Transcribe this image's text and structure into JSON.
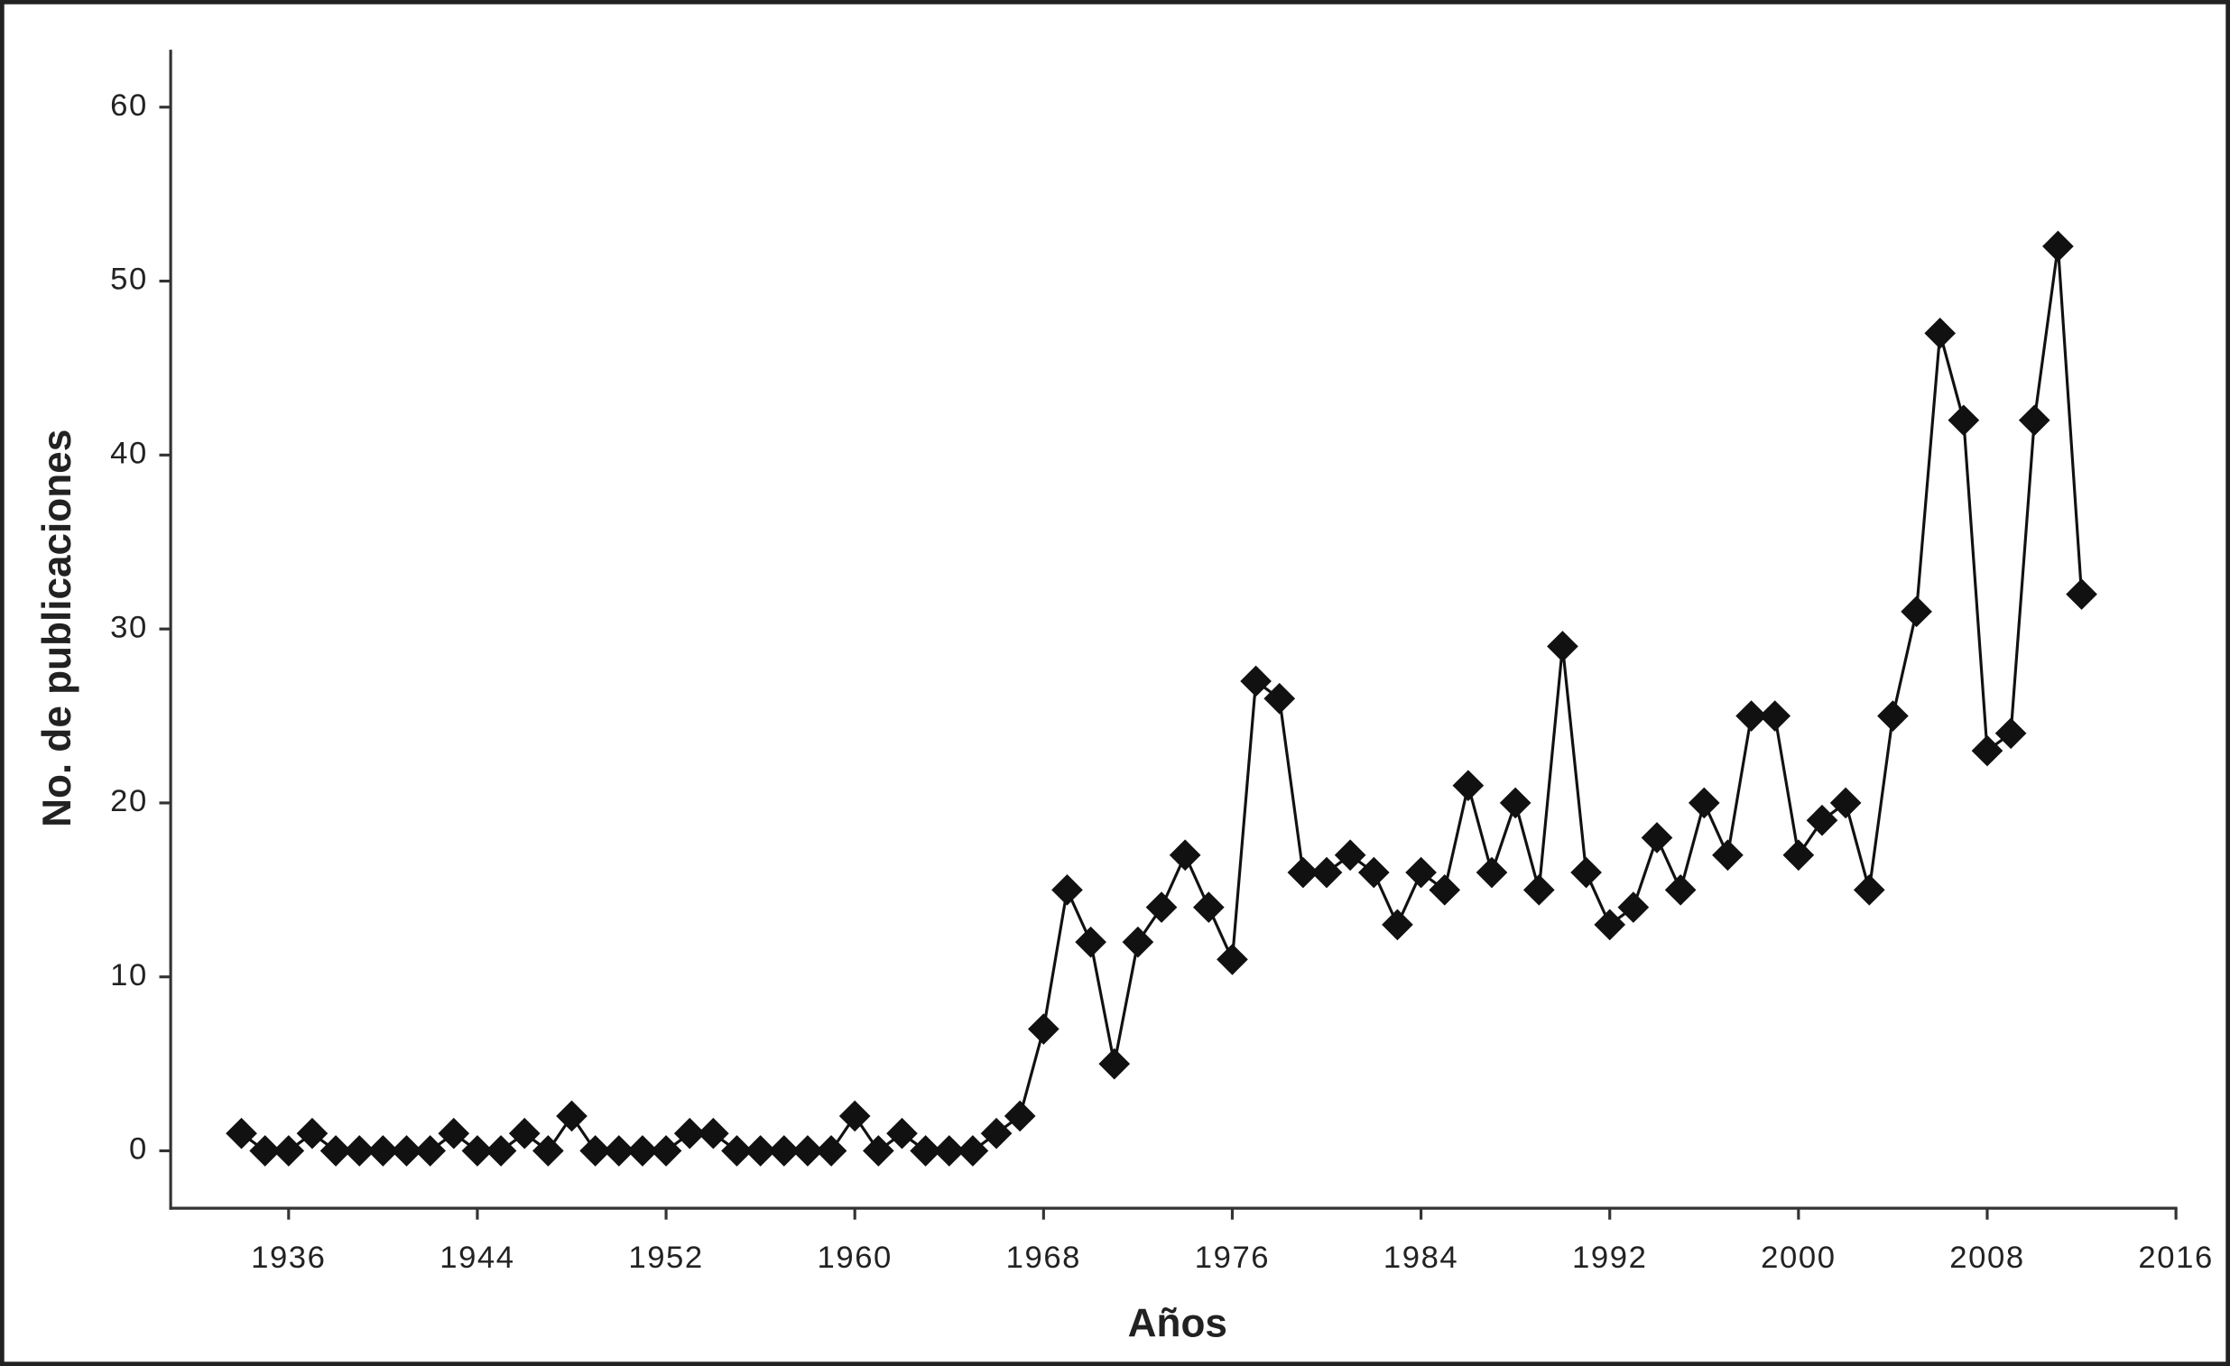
{
  "chart_data": {
    "type": "line",
    "x_label": "Años",
    "y_label": "No. de publicaciones",
    "x": [
      1934,
      1935,
      1936,
      1937,
      1938,
      1939,
      1940,
      1941,
      1942,
      1943,
      1944,
      1945,
      1946,
      1947,
      1948,
      1949,
      1950,
      1951,
      1952,
      1953,
      1954,
      1955,
      1956,
      1957,
      1958,
      1959,
      1960,
      1961,
      1962,
      1963,
      1964,
      1965,
      1966,
      1967,
      1968,
      1969,
      1970,
      1971,
      1972,
      1973,
      1974,
      1975,
      1976,
      1977,
      1978,
      1979,
      1980,
      1981,
      1982,
      1983,
      1984,
      1985,
      1986,
      1987,
      1988,
      1989,
      1990,
      1991,
      1992,
      1993,
      1994,
      1995,
      1996,
      1997,
      1998,
      1999,
      2000,
      2001,
      2002,
      2003,
      2004,
      2005,
      2006,
      2007,
      2008,
      2009,
      2010,
      2011,
      2012
    ],
    "values": [
      1,
      0,
      0,
      1,
      0,
      0,
      0,
      0,
      0,
      1,
      0,
      0,
      1,
      0,
      2,
      0,
      0,
      0,
      0,
      1,
      1,
      0,
      0,
      0,
      0,
      0,
      2,
      0,
      1,
      0,
      0,
      0,
      1,
      2,
      7,
      15,
      12,
      5,
      12,
      14,
      17,
      14,
      11,
      27,
      26,
      16,
      16,
      17,
      16,
      13,
      16,
      15,
      21,
      16,
      20,
      15,
      29,
      16,
      13,
      14,
      18,
      15,
      20,
      17,
      25,
      25,
      17,
      19,
      20,
      15,
      25,
      31,
      47,
      42,
      23,
      24,
      42,
      52,
      32
    ],
    "color": "#111111",
    "marker": "diamond",
    "xlim": [
      1931,
      2016
    ],
    "xticks": [
      1936,
      1944,
      1952,
      1960,
      1968,
      1976,
      1984,
      1992,
      2000,
      2008,
      2016
    ],
    "ylim": [
      -3.3,
      63.3
    ],
    "yticks": [
      0,
      10,
      20,
      30,
      40,
      50,
      60
    ],
    "grid": false
  }
}
